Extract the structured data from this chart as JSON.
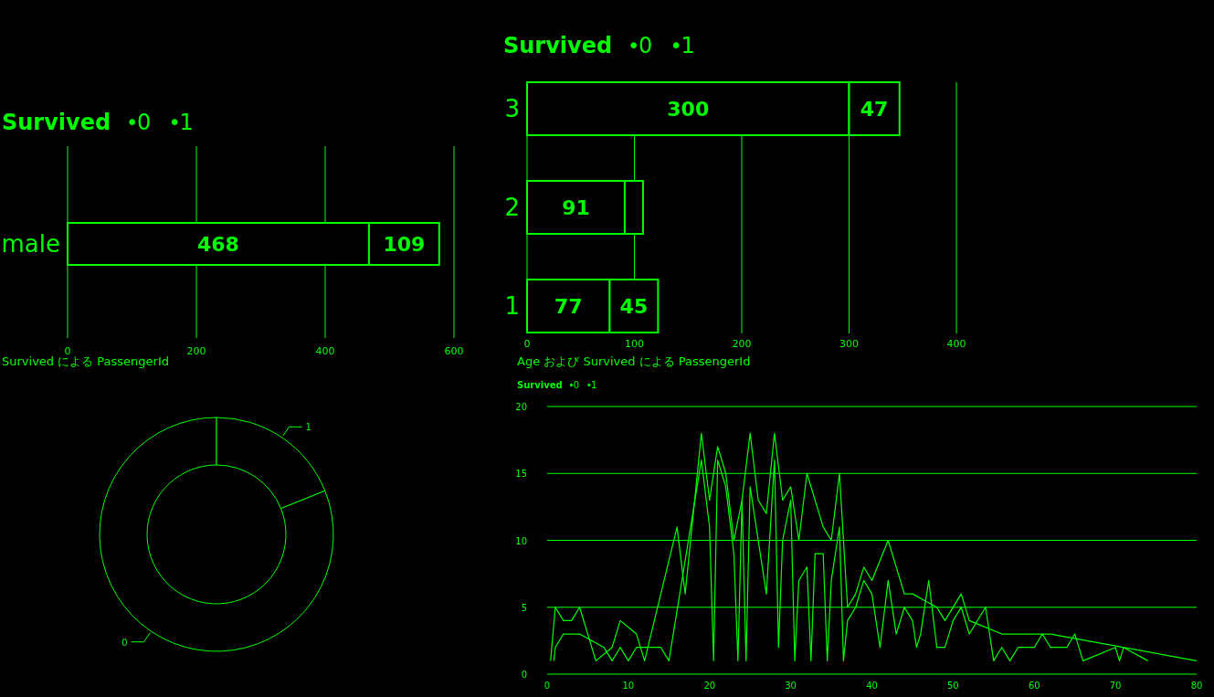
{
  "chart_data": [
    {
      "type": "bar",
      "orientation": "horizontal",
      "stacked": true,
      "legend": "top left",
      "legend_title": "Survived",
      "categories": [
        "male"
      ],
      "series": [
        {
          "name": "0",
          "color": "#00ff00",
          "values": [
            468
          ]
        },
        {
          "name": "1",
          "color": "#00ff00",
          "values": [
            109
          ]
        }
      ],
      "data_labels": true,
      "xlim": [
        0,
        600
      ],
      "xticks": [
        0,
        200,
        400,
        600
      ],
      "grid": "x"
    },
    {
      "type": "bar",
      "orientation": "horizontal",
      "stacked": true,
      "legend": "top left",
      "legend_title": "Survived",
      "categories": [
        "3",
        "2",
        "1"
      ],
      "series": [
        {
          "name": "0",
          "color": "#00ff00",
          "values": [
            300,
            91,
            77
          ],
          "value_labels": [
            "300",
            "91",
            "77"
          ]
        },
        {
          "name": "1",
          "color": "#00ff00",
          "values": [
            47,
            17,
            45
          ],
          "value_labels": [
            "47",
            null,
            "45"
          ]
        }
      ],
      "xlim": [
        0,
        400
      ],
      "xticks": [
        0,
        100,
        200,
        300,
        400
      ],
      "grid": "x"
    },
    {
      "type": "donut",
      "title": "Survived による PassengerId",
      "categories": [
        "0",
        "1"
      ],
      "values": [
        81.1,
        18.9
      ],
      "colors": [
        "#00ff00",
        "#00ff00"
      ]
    },
    {
      "type": "line",
      "title": "Age および Survived による PassengerId",
      "legend": "top left",
      "legend_title": "Survived",
      "series": [
        {
          "name": "0",
          "color": "#00ff00",
          "x": [
            0.42,
            1,
            2,
            3,
            4,
            6,
            8,
            9,
            11,
            12,
            16,
            17,
            19,
            20,
            21,
            22,
            23,
            24,
            25,
            26,
            27,
            28,
            29,
            30,
            31,
            32,
            34,
            35,
            36,
            37,
            38,
            39,
            40,
            42,
            44,
            45,
            48,
            49,
            51,
            52,
            56,
            60,
            62,
            80
          ],
          "values": [
            1,
            5,
            4,
            4,
            5,
            1,
            2,
            4,
            3,
            1,
            11,
            6,
            18,
            13,
            17,
            15,
            10,
            13,
            18,
            13,
            12,
            18,
            13,
            14,
            10,
            15,
            11,
            10,
            15,
            5,
            6,
            8,
            7,
            10,
            6,
            6,
            5,
            4,
            6,
            4,
            3,
            3,
            3,
            1
          ]
        },
        {
          "name": "1",
          "color": "#00ff00",
          "x": [
            0.83,
            1,
            2,
            4,
            7,
            8,
            9,
            10,
            11,
            14,
            15,
            19,
            20,
            20.5,
            21,
            22,
            23,
            23.5,
            24,
            24.5,
            25,
            27,
            28,
            28.5,
            29,
            30,
            30.5,
            31,
            32,
            32.5,
            33,
            34,
            34.5,
            35,
            36,
            36.5,
            37,
            38,
            39,
            40,
            41,
            42,
            43,
            44,
            45,
            45.5,
            46,
            47,
            48,
            49,
            50,
            51,
            52,
            54,
            55,
            56,
            57,
            58,
            60,
            61,
            62,
            64,
            65,
            66,
            70,
            70.5,
            71,
            74
          ],
          "values": [
            1,
            2,
            3,
            3,
            2,
            1,
            2,
            1,
            2,
            2,
            1,
            16,
            11,
            1,
            16,
            14,
            9,
            1,
            13,
            1,
            14,
            6,
            16,
            2,
            10,
            13,
            1,
            7,
            8,
            1,
            9,
            9,
            1,
            7,
            11,
            1,
            4,
            5,
            7,
            6,
            2,
            7,
            3,
            5,
            4,
            2,
            3,
            7,
            2,
            2,
            4,
            5,
            3,
            5,
            1,
            2,
            1,
            2,
            2,
            3,
            2,
            2,
            3,
            1,
            2,
            1,
            2,
            1
          ]
        }
      ],
      "xlim": [
        0,
        80
      ],
      "xticks": [
        0,
        10,
        20,
        30,
        40,
        50,
        60,
        70,
        80
      ],
      "ylim": [
        0,
        20
      ],
      "yticks": [
        0,
        5,
        10,
        15,
        20
      ],
      "grid": "y"
    }
  ]
}
